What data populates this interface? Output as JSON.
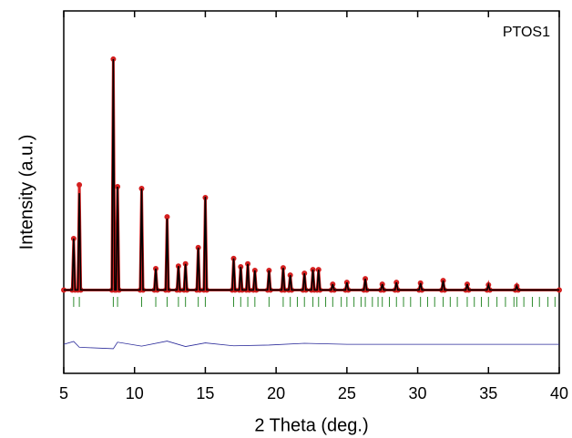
{
  "chart_data": {
    "type": "line",
    "annotation": "PTOS1",
    "xlabel": "2 Theta (deg.)",
    "ylabel": "Intensity (a.u.)",
    "xlim": [
      5,
      40
    ],
    "xticks": [
      5,
      10,
      15,
      20,
      25,
      30,
      35,
      40
    ],
    "ylim": [
      0,
      100
    ],
    "series": [
      {
        "style": "points",
        "color": "#d42020",
        "x": [
          5,
          5.6,
          5.7,
          5.8,
          6.0,
          6.1,
          6.2,
          8.4,
          8.5,
          8.6,
          8.7,
          8.8,
          8.9,
          10.4,
          10.5,
          10.6,
          11.4,
          11.5,
          11.6,
          12.2,
          12.3,
          12.4,
          13.0,
          13.1,
          13.2,
          13.5,
          13.6,
          13.7,
          14.4,
          14.5,
          14.6,
          14.9,
          15.0,
          15.1,
          16.9,
          17.0,
          17.1,
          17.4,
          17.5,
          17.6,
          17.9,
          18.0,
          18.1,
          18.4,
          18.5,
          18.6,
          19.4,
          19.5,
          19.6,
          20.4,
          20.5,
          20.6,
          20.9,
          21.0,
          21.1,
          21.9,
          22.0,
          22.1,
          22.5,
          22.6,
          22.7,
          22.9,
          23.0,
          23.1,
          23.9,
          24.0,
          24.1,
          24.9,
          25.0,
          25.1,
          26.2,
          26.3,
          26.4,
          27.4,
          27.5,
          27.6,
          28.4,
          28.5,
          28.6,
          30.1,
          30.2,
          30.3,
          31.7,
          31.8,
          31.9,
          33.4,
          33.5,
          33.6,
          34.9,
          35.0,
          35.1,
          36.9,
          37.0,
          37.1,
          40
        ],
        "values": [
          23,
          23,
          37.2,
          23,
          23,
          52,
          23,
          23,
          86.7,
          23,
          23,
          51.5,
          23,
          23,
          51,
          23,
          23,
          28.9,
          23,
          23,
          43.2,
          23,
          23,
          29.6,
          23,
          23,
          30.2,
          23,
          23,
          34.7,
          23,
          23,
          48.5,
          23,
          23,
          31.7,
          23,
          23,
          29.4,
          23,
          23,
          30.2,
          23,
          23,
          28.4,
          23,
          23,
          28.4,
          23,
          23,
          29.1,
          23,
          23,
          27.1,
          23,
          23,
          27.6,
          23,
          23,
          28.6,
          23,
          23,
          28.6,
          23,
          23,
          24.6,
          23,
          23,
          25.1,
          23,
          23,
          26.1,
          23,
          23,
          24.6,
          23,
          23,
          25.1,
          23,
          23,
          24.9,
          23,
          23,
          25.6,
          23,
          23,
          24.6,
          23,
          23,
          24.4,
          23,
          23,
          24.1,
          23,
          23
        ]
      },
      {
        "style": "line",
        "color": "#000000",
        "x": [
          5,
          5.6,
          5.7,
          5.8,
          6.0,
          6.1,
          6.2,
          8.4,
          8.5,
          8.6,
          8.7,
          8.8,
          8.9,
          10.4,
          10.5,
          10.6,
          11.4,
          11.5,
          11.6,
          12.2,
          12.3,
          12.4,
          13.0,
          13.1,
          13.2,
          13.5,
          13.6,
          13.7,
          14.4,
          14.5,
          14.6,
          14.9,
          15.0,
          15.1,
          16.9,
          17.0,
          17.1,
          17.4,
          17.5,
          17.6,
          17.9,
          18.0,
          18.1,
          18.4,
          18.5,
          18.6,
          19.4,
          19.5,
          19.6,
          20.4,
          20.5,
          20.6,
          20.9,
          21.0,
          21.1,
          21.9,
          22.0,
          22.1,
          22.5,
          22.6,
          22.7,
          22.9,
          23.0,
          23.1,
          23.9,
          24.0,
          24.1,
          24.9,
          25.0,
          25.1,
          26.2,
          26.3,
          26.4,
          27.4,
          27.5,
          27.6,
          28.4,
          28.5,
          28.6,
          30.1,
          30.2,
          30.3,
          31.7,
          31.8,
          31.9,
          33.4,
          33.5,
          33.6,
          34.9,
          35.0,
          35.1,
          36.9,
          37.0,
          37.1,
          40
        ],
        "values": [
          23,
          23,
          37.2,
          23,
          23,
          49.7,
          23,
          23,
          86.7,
          23,
          23,
          51.5,
          23,
          23,
          51,
          23,
          23,
          28.9,
          23,
          23,
          42.7,
          23,
          23,
          29.6,
          23,
          23,
          30.2,
          23,
          23,
          34.7,
          23,
          23,
          48.7,
          23,
          23,
          31.7,
          23,
          23,
          29.4,
          23,
          23,
          30.2,
          23,
          23,
          28.4,
          23,
          23,
          28.4,
          23,
          23,
          29.1,
          23,
          23,
          27.1,
          23,
          23,
          27.6,
          23,
          23,
          28.6,
          23,
          23,
          28.6,
          23,
          23,
          24.6,
          23,
          23,
          25.1,
          23,
          23,
          26.1,
          23,
          23,
          24.6,
          23,
          23,
          25.1,
          23,
          23,
          24.9,
          23,
          23,
          25.6,
          23,
          23,
          24.6,
          23,
          23,
          24.4,
          23,
          23,
          24.1,
          23,
          23
        ]
      },
      {
        "style": "thin",
        "color": "#2a2a9a",
        "x": [
          5,
          5.7,
          6.1,
          8.5,
          8.8,
          10.5,
          12.3,
          13.6,
          15.0,
          17.0,
          19.5,
          22.0,
          25,
          30,
          35,
          40
        ],
        "values": [
          8,
          8.8,
          7.2,
          6.8,
          8.6,
          7.5,
          8.9,
          7.4,
          8.4,
          7.6,
          7.8,
          8.3,
          8,
          8,
          8,
          8
        ]
      }
    ],
    "bragg_color": "#2e8b2e",
    "bragg_positions": [
      5.7,
      6.1,
      8.5,
      8.8,
      10.5,
      11.5,
      12.3,
      13.1,
      13.6,
      14.5,
      15.0,
      17.0,
      17.5,
      18.0,
      18.5,
      19.5,
      20.5,
      21.0,
      21.5,
      22.0,
      22.6,
      23.0,
      23.5,
      24.0,
      24.6,
      25.0,
      25.5,
      26.0,
      26.3,
      26.8,
      27.2,
      27.5,
      28.0,
      28.5,
      29.0,
      29.5,
      30.2,
      30.7,
      31.2,
      31.8,
      32.3,
      32.8,
      33.5,
      34.0,
      34.5,
      35.0,
      35.6,
      36.2,
      36.8,
      37.0,
      37.5,
      38.1,
      38.6,
      39.2,
      39.7
    ]
  }
}
